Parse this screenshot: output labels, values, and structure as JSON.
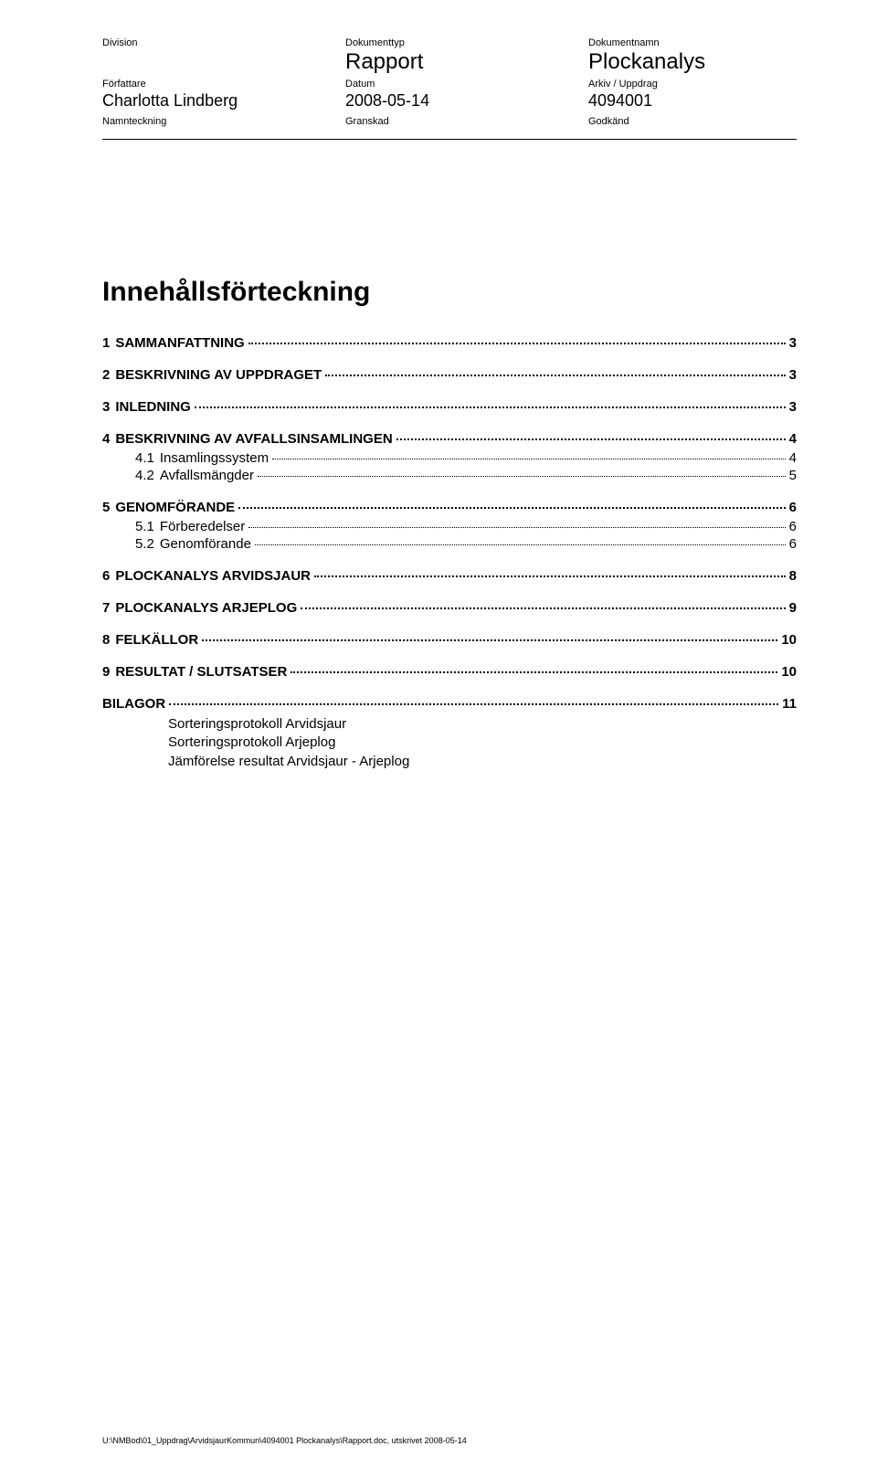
{
  "header": {
    "rows": [
      {
        "label1": "Division",
        "value1": "",
        "label2": "Dokumenttyp",
        "value2": "Rapport",
        "label3": "Dokumentnamn",
        "value3": "Plockanalys",
        "big": true
      },
      {
        "label1": "Författare",
        "value1": "Charlotta Lindberg",
        "label2": "Datum",
        "value2": "2008-05-14",
        "label3": "Arkiv / Uppdrag",
        "value3": "4094001",
        "big": false
      },
      {
        "label1": "Namnteckning",
        "value1": "",
        "label2": "Granskad",
        "value2": "",
        "label3": "Godkänd",
        "value3": "",
        "big": false
      }
    ]
  },
  "title": "Innehållsförteckning",
  "toc": [
    {
      "level": 1,
      "num": "1",
      "label": "SAMMANFATTNING",
      "page": "3"
    },
    {
      "level": 1,
      "num": "2",
      "label": "BESKRIVNING AV UPPDRAGET",
      "page": "3"
    },
    {
      "level": 1,
      "num": "3",
      "label": "INLEDNING",
      "page": "3"
    },
    {
      "level": 1,
      "num": "4",
      "label": "BESKRIVNING AV AVFALLSINSAMLINGEN",
      "page": "4"
    },
    {
      "level": 2,
      "num": "4.1",
      "label": "Insamlingssystem",
      "page": "4"
    },
    {
      "level": 2,
      "num": "4.2",
      "label": "Avfallsmängder",
      "page": "5"
    },
    {
      "level": 1,
      "num": "5",
      "label": "GENOMFÖRANDE",
      "page": "6"
    },
    {
      "level": 2,
      "num": "5.1",
      "label": "Förberedelser",
      "page": "6"
    },
    {
      "level": 2,
      "num": "5.2",
      "label": "Genomförande",
      "page": "6"
    },
    {
      "level": 1,
      "num": "6",
      "label": "PLOCKANALYS ARVIDSJAUR",
      "page": "8"
    },
    {
      "level": 1,
      "num": "7",
      "label": "PLOCKANALYS ARJEPLOG",
      "page": "9"
    },
    {
      "level": 1,
      "num": "8",
      "label": "FELKÄLLOR",
      "page": "10"
    },
    {
      "level": 1,
      "num": "9",
      "label": "RESULTAT / SLUTSATSER",
      "page": "10"
    },
    {
      "level": 1,
      "num": "",
      "label": "BILAGOR",
      "page": "11"
    }
  ],
  "appendix": [
    "Sorteringsprotokoll Arvidsjaur",
    "Sorteringsprotokoll Arjeplog",
    "Jämförelse resultat Arvidsjaur - Arjeplog"
  ],
  "footer": "U:\\NMBod\\01_Uppdrag\\ArvidsjaurKommun\\4094001 Plockanalys\\Rapport.doc, utskrivet 2008-05-14"
}
